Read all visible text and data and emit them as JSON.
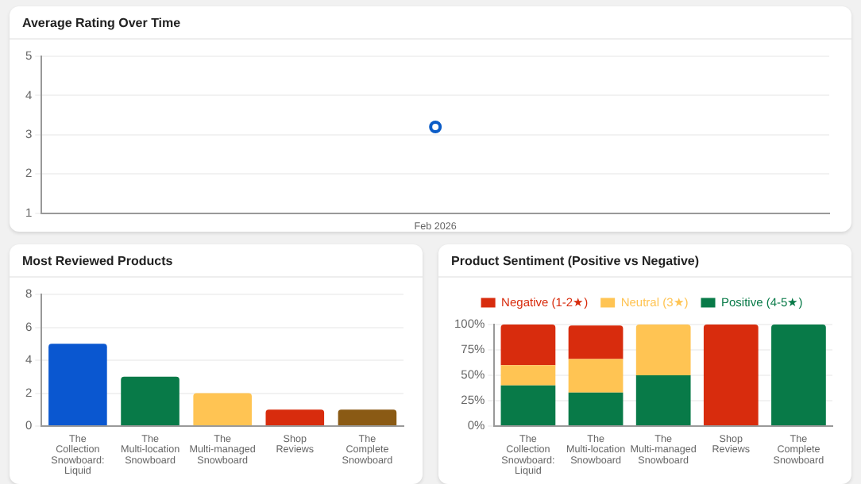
{
  "chart_data": [
    {
      "type": "line",
      "title": "Average Rating Over Time",
      "categories": [
        "Feb 2026"
      ],
      "values": [
        3.2
      ],
      "color": "#0b5cc7",
      "marker": "circle",
      "ylim": [
        1,
        5
      ],
      "yticks": [
        1,
        2,
        3,
        4,
        5
      ],
      "grid": "y",
      "legend": false
    },
    {
      "type": "bar",
      "title": "Most Reviewed Products",
      "categories": [
        "The Collection Snowboard: Liquid",
        "The Multi-location Snowboard",
        "The Multi-managed Snowboard",
        "Shop Reviews",
        "The Complete Snowboard"
      ],
      "values": [
        5,
        3,
        2,
        1,
        1
      ],
      "colors": [
        "#0a57d0",
        "#087a48",
        "#ffc453",
        "#d82c0d",
        "#8a5a14"
      ],
      "ylim": [
        0,
        8
      ],
      "yticks": [
        0,
        2,
        4,
        6,
        8
      ],
      "grid": "y",
      "legend": false
    },
    {
      "type": "bar",
      "title": "Product Sentiment (Positive vs Negative)",
      "stacked": true,
      "categories": [
        "The Collection Snowboard: Liquid",
        "The Multi-location Snowboard",
        "The Multi-managed Snowboard",
        "Shop Reviews",
        "The Complete Snowboard"
      ],
      "series": [
        {
          "name": "Positive (4-5★)",
          "color": "#087a48",
          "values": [
            40,
            33,
            50,
            0,
            100
          ]
        },
        {
          "name": "Neutral (3★)",
          "color": "#ffc453",
          "values": [
            20,
            33,
            50,
            0,
            0
          ]
        },
        {
          "name": "Negative (1-2★)",
          "color": "#d82c0d",
          "values": [
            40,
            33,
            0,
            100,
            0
          ]
        }
      ],
      "ylim": [
        0,
        100
      ],
      "yticks": [
        {
          "value": 0,
          "label": "0%"
        },
        {
          "value": 25,
          "label": "25%"
        },
        {
          "value": 50,
          "label": "50%"
        },
        {
          "value": 75,
          "label": "75%"
        },
        {
          "value": 100,
          "label": "100%"
        }
      ],
      "grid": "y",
      "legend": "top"
    }
  ]
}
